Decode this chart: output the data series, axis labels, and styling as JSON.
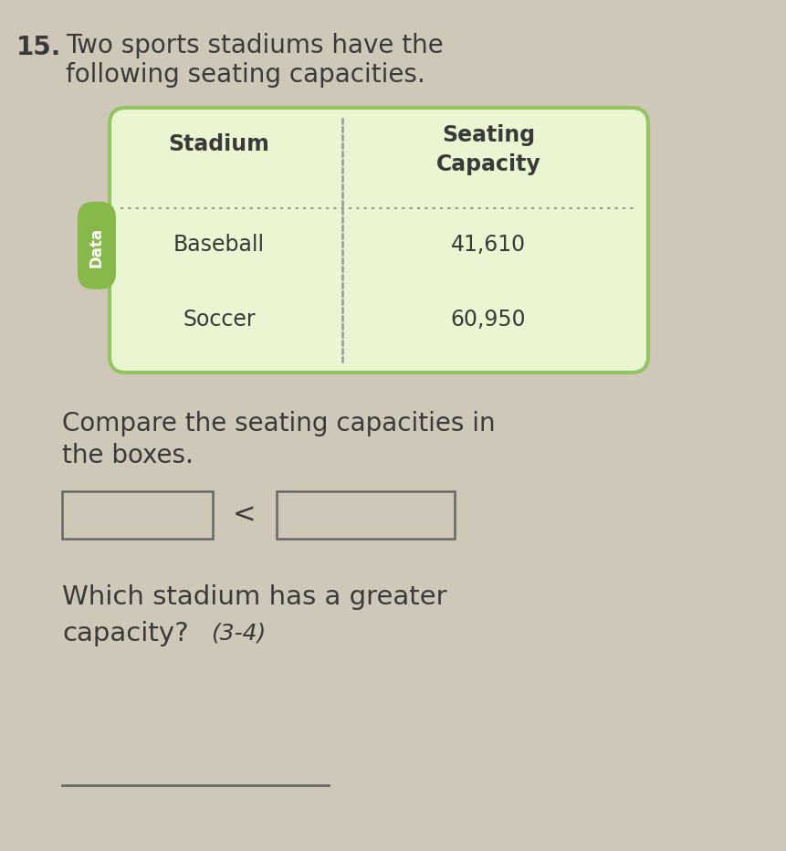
{
  "background_color": "#cfc8b8",
  "number_label": "15.",
  "title_line1": "Two sports stadiums have the",
  "title_line2": "following seating capacities.",
  "table_header_col1": "Stadium",
  "table_header_col2_line1": "Seating",
  "table_header_col2_line2": "Capacity",
  "table_rows": [
    [
      "Baseball",
      "41,610"
    ],
    [
      "Soccer",
      "60,950"
    ]
  ],
  "data_label": "Data",
  "compare_text_line1": "Compare the seating capacities in",
  "compare_text_line2": "the boxes.",
  "comparison_symbol": "<",
  "question_line1": "Which stadium has a greater",
  "question_line2": "capacity?",
  "question_suffix": "(3-4)",
  "table_border_color": "#94c464",
  "table_fill_color": "#eaf5d2",
  "data_badge_color": "#86b84a",
  "data_badge_text_color": "#ffffff",
  "text_color_dark": "#3a3a3a",
  "text_color_body": "#444444",
  "box_border_color": "#666666",
  "dotted_line_color": "#999999",
  "answer_line_color": "#666666",
  "title_fontsize": 20,
  "number_fontsize": 20,
  "table_header_fontsize": 17,
  "table_body_fontsize": 17,
  "body_fontsize": 20,
  "question_fontsize": 21,
  "suffix_fontsize": 18
}
